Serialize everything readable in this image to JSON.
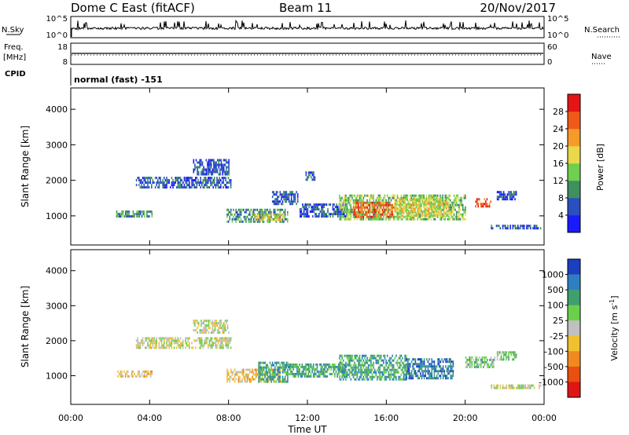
{
  "header": {
    "radar": "Dome C East (fitACF)",
    "beam": "Beam 11",
    "date": "20/Nov/2017"
  },
  "strips": {
    "nsky": {
      "label": "N.Sky",
      "ticks": [
        "10^5",
        "10^0"
      ]
    },
    "nsearch": {
      "label": "N.Search",
      "ticks": [
        "10^5",
        "10^0"
      ]
    },
    "freq": {
      "label_line1": "Freq.",
      "label_line2": "[MHz]",
      "ticks": [
        "18",
        "8"
      ]
    },
    "nave": {
      "label": "Nave",
      "ticks": [
        "60",
        "0"
      ]
    },
    "cpid": {
      "label": "CPID",
      "value": "normal (fast) -151"
    }
  },
  "colors": {
    "power": [
      "#1a1aff",
      "#2a4fbf",
      "#3f8f5f",
      "#6fcf4f",
      "#e8d84a",
      "#f59b2a",
      "#ef5a1a",
      "#e31515"
    ],
    "velocity": [
      "#1a3fbf",
      "#2e7fc0",
      "#3f9f6f",
      "#6ccf4a",
      "#c0c0c0",
      "#f0c030",
      "#f08a20",
      "#e84f10",
      "#e01515"
    ]
  },
  "chart_data": [
    {
      "type": "heatmap",
      "name": "power",
      "xlabel": "Time UT",
      "ylabel": "Slant Range [km]",
      "x_ticks": [
        "00:00",
        "04:00",
        "08:00",
        "12:00",
        "16:00",
        "20:00",
        "00:00"
      ],
      "xlim_hours": [
        0,
        24
      ],
      "y_ticks": [
        1000,
        2000,
        3000,
        4000
      ],
      "ylim": [
        180,
        4600
      ],
      "colorbar_label": "Power [dB]",
      "colorbar_ticks": [
        "4",
        "8",
        "12",
        "16",
        "20",
        "24",
        "28"
      ],
      "regions": [
        {
          "t0": 2.3,
          "t1": 4.1,
          "r0": 980,
          "r1": 1150,
          "level": 2
        },
        {
          "t0": 3.3,
          "t1": 8.1,
          "r0": 1820,
          "r1": 2100,
          "level": 1
        },
        {
          "t0": 6.2,
          "t1": 8.0,
          "r0": 2200,
          "r1": 2600,
          "level": 1
        },
        {
          "t0": 7.9,
          "t1": 11.0,
          "r0": 830,
          "r1": 1200,
          "level": 2
        },
        {
          "t0": 9.3,
          "t1": 10.8,
          "r0": 860,
          "r1": 1050,
          "level": 4
        },
        {
          "t0": 10.2,
          "t1": 11.5,
          "r0": 1350,
          "r1": 1700,
          "level": 1
        },
        {
          "t0": 11.6,
          "t1": 14.0,
          "r0": 1000,
          "r1": 1350,
          "level": 1
        },
        {
          "t0": 13.6,
          "t1": 20.0,
          "r0": 900,
          "r1": 1600,
          "level": 3
        },
        {
          "t0": 14.3,
          "t1": 16.3,
          "r0": 1000,
          "r1": 1400,
          "level": 6
        },
        {
          "t0": 16.4,
          "t1": 19.2,
          "r0": 1000,
          "r1": 1500,
          "level": 4
        },
        {
          "t0": 20.5,
          "t1": 21.3,
          "r0": 1280,
          "r1": 1500,
          "level": 6
        },
        {
          "t0": 21.6,
          "t1": 22.6,
          "r0": 1480,
          "r1": 1700,
          "level": 1
        },
        {
          "t0": 21.3,
          "t1": 23.8,
          "r0": 650,
          "r1": 750,
          "level": 1
        },
        {
          "t0": 11.9,
          "t1": 12.4,
          "r0": 2000,
          "r1": 2250,
          "level": 1
        }
      ]
    },
    {
      "type": "heatmap",
      "name": "velocity",
      "xlabel": "Time UT",
      "ylabel": "Slant Range [km]",
      "x_ticks": [
        "00:00",
        "04:00",
        "08:00",
        "12:00",
        "16:00",
        "20:00",
        "00:00"
      ],
      "xlim_hours": [
        0,
        24
      ],
      "y_ticks": [
        1000,
        2000,
        3000,
        4000
      ],
      "ylim": [
        180,
        4600
      ],
      "colorbar_label": "Velocity [m s^-1]",
      "colorbar_ticks": [
        "1000",
        "500",
        "100",
        "25",
        "-25",
        "-100",
        "-500",
        "-1000"
      ],
      "regions": [
        {
          "t0": 2.3,
          "t1": 4.1,
          "r0": 980,
          "r1": 1150,
          "level": 5
        },
        {
          "t0": 3.3,
          "t1": 8.1,
          "r0": 1820,
          "r1": 2100,
          "level": 4
        },
        {
          "t0": 6.2,
          "t1": 8.0,
          "r0": 2200,
          "r1": 2600,
          "level": 4
        },
        {
          "t0": 7.9,
          "t1": 10.6,
          "r0": 830,
          "r1": 1200,
          "level": 5
        },
        {
          "t0": 9.5,
          "t1": 11.0,
          "r0": 860,
          "r1": 1400,
          "level": 2
        },
        {
          "t0": 11.0,
          "t1": 14.0,
          "r0": 1000,
          "r1": 1350,
          "level": 2
        },
        {
          "t0": 13.6,
          "t1": 17.0,
          "r0": 900,
          "r1": 1600,
          "level": 2
        },
        {
          "t0": 17.0,
          "t1": 19.4,
          "r0": 950,
          "r1": 1500,
          "level": 1
        },
        {
          "t0": 20.0,
          "t1": 21.5,
          "r0": 1280,
          "r1": 1550,
          "level": 3
        },
        {
          "t0": 21.6,
          "t1": 22.6,
          "r0": 1480,
          "r1": 1700,
          "level": 3
        },
        {
          "t0": 21.3,
          "t1": 23.8,
          "r0": 650,
          "r1": 750,
          "level": 4
        }
      ]
    }
  ]
}
